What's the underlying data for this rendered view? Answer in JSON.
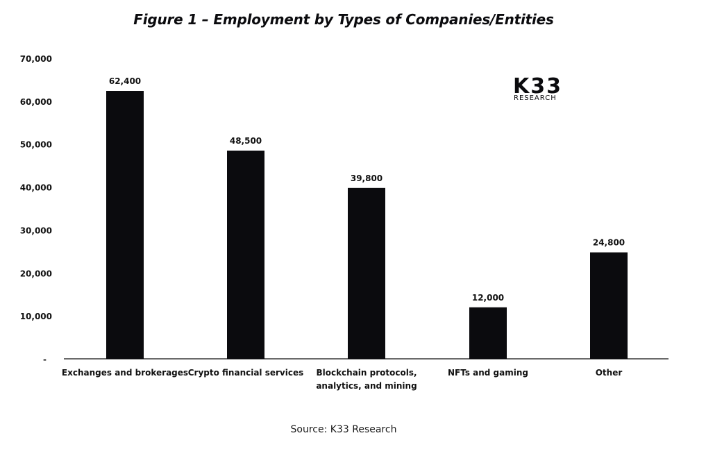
{
  "title": "Figure 1 – Employment by Types of Companies/Entities",
  "source": "Source: K33 Research",
  "logo": {
    "name": "K33",
    "subtitle": "RESEARCH"
  },
  "colors": {
    "bar": "#0b0b0e",
    "text": "#111111",
    "axis": "#111111"
  },
  "chart_data": {
    "type": "bar",
    "categories": [
      [
        "Exchanges and brokerages"
      ],
      [
        "Crypto financial services"
      ],
      [
        "Blockchain protocols,",
        "analytics, and mining"
      ],
      [
        "NFTs and gaming"
      ],
      [
        "Other"
      ]
    ],
    "values": [
      62400,
      48500,
      39800,
      12000,
      24800
    ],
    "data_labels": [
      "62,400",
      "48,500",
      "39,800",
      "12,000",
      "24,800"
    ],
    "ylim": [
      0,
      70000
    ],
    "yticks": [
      0,
      10000,
      20000,
      30000,
      40000,
      50000,
      60000,
      70000
    ],
    "ytick_labels": [
      "-",
      "10,000",
      "20,000",
      "30,000",
      "40,000",
      "50,000",
      "60,000",
      "70,000"
    ],
    "xlabel": "",
    "ylabel": "",
    "grid": false,
    "legend": false
  }
}
